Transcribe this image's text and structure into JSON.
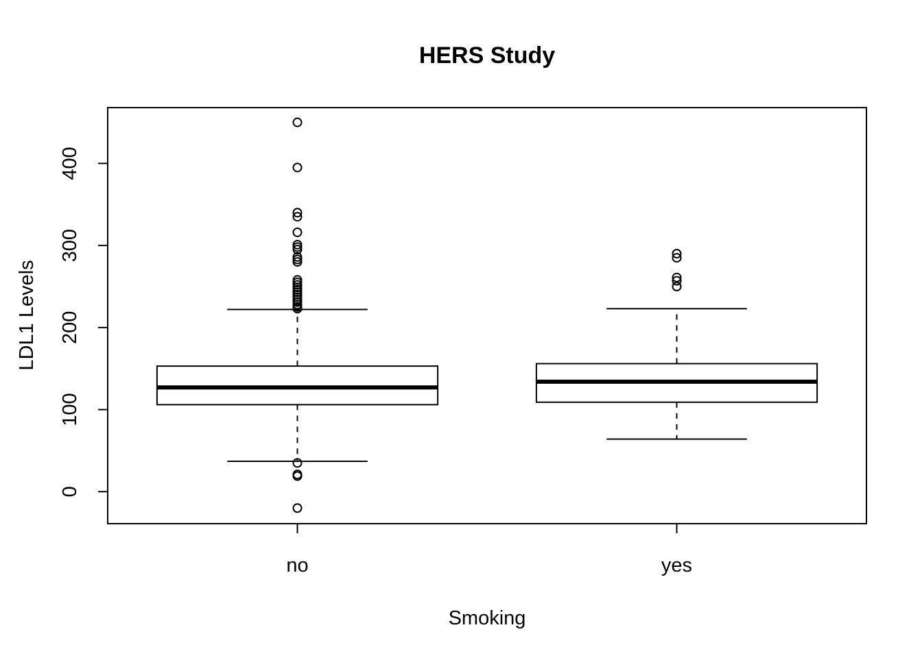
{
  "chart_data": {
    "type": "boxplot",
    "title": "HERS Study",
    "xlabel": "Smoking",
    "ylabel": "LDL1 Levels",
    "ylim": [
      -39,
      468
    ],
    "yticks": [
      0,
      100,
      200,
      300,
      400
    ],
    "grid": false,
    "legend": "none",
    "categories": [
      "no",
      "yes"
    ],
    "boxes": [
      {
        "category": "no",
        "whisker_low": 37,
        "q1": 106,
        "median": 127,
        "q3": 153,
        "whisker_high": 222,
        "outliers": [
          450,
          395,
          340,
          335,
          316,
          301,
          298,
          295,
          286,
          283,
          280,
          258,
          255,
          252,
          249,
          246,
          243,
          240,
          237,
          234,
          231,
          228,
          225,
          223,
          35,
          21,
          19,
          -20
        ]
      },
      {
        "category": "yes",
        "whisker_low": 64,
        "q1": 109,
        "median": 134,
        "q3": 156,
        "whisker_high": 223,
        "outliers": [
          290,
          285,
          261,
          257,
          250
        ]
      }
    ]
  }
}
